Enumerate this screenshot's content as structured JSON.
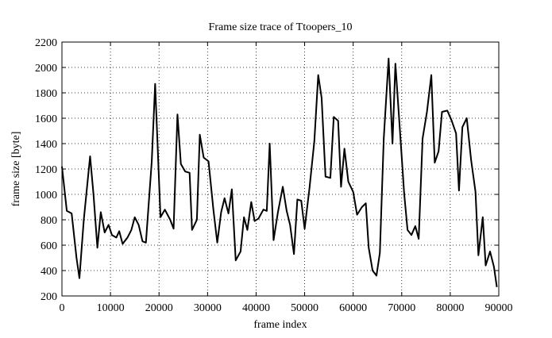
{
  "chart_data": {
    "type": "line",
    "title": "Frame size trace of Ttoopers_10",
    "x_label": "frame index",
    "y_label": "frame size [byte]",
    "x": [
      0,
      1000,
      2000,
      3000,
      3600,
      4500,
      5800,
      6500,
      7300,
      8000,
      8800,
      9600,
      10300,
      11200,
      11800,
      12500,
      13500,
      14300,
      15000,
      15800,
      16600,
      17300,
      18500,
      19200,
      20300,
      21200,
      22300,
      23000,
      23800,
      24500,
      25400,
      26300,
      26800,
      27800,
      28400,
      29200,
      30200,
      31200,
      32000,
      32800,
      33500,
      34300,
      35000,
      35800,
      36800,
      37500,
      38200,
      39000,
      39700,
      40500,
      41500,
      42200,
      42800,
      43600,
      44500,
      45500,
      46300,
      47000,
      47800,
      48500,
      49300,
      50000,
      51000,
      52000,
      52800,
      53500,
      54300,
      55300,
      56000,
      56900,
      57500,
      58200,
      59000,
      60000,
      60800,
      61800,
      62600,
      63200,
      64000,
      64800,
      65500,
      66300,
      67300,
      68100,
      68700,
      69800,
      70500,
      71200,
      72000,
      72800,
      73500,
      74300,
      75200,
      76100,
      76800,
      77600,
      78300,
      79400,
      80300,
      81200,
      81800,
      82500,
      83400,
      84300,
      85200,
      85800,
      86700,
      87300,
      88200,
      89000,
      89600
    ],
    "values": [
      1220,
      870,
      850,
      500,
      340,
      800,
      1300,
      1000,
      580,
      860,
      700,
      760,
      680,
      660,
      710,
      610,
      660,
      720,
      820,
      760,
      630,
      620,
      1260,
      1870,
      820,
      880,
      800,
      730,
      1630,
      1240,
      1180,
      1170,
      720,
      800,
      1470,
      1290,
      1260,
      880,
      620,
      860,
      970,
      850,
      1040,
      480,
      550,
      820,
      720,
      940,
      790,
      810,
      880,
      870,
      1400,
      640,
      860,
      1060,
      870,
      760,
      530,
      960,
      950,
      730,
      1050,
      1420,
      1940,
      1760,
      1140,
      1130,
      1610,
      1580,
      1060,
      1360,
      1100,
      1020,
      840,
      900,
      930,
      580,
      400,
      360,
      540,
      1440,
      2070,
      1400,
      2030,
      1410,
      1010,
      720,
      680,
      750,
      650,
      1440,
      1650,
      1940,
      1250,
      1340,
      1650,
      1660,
      1580,
      1480,
      1030,
      1530,
      1600,
      1270,
      1020,
      520,
      820,
      440,
      550,
      430,
      270
    ],
    "color": "#000000",
    "xlim": [
      0,
      90000
    ],
    "xticks": [
      0,
      10000,
      20000,
      30000,
      40000,
      50000,
      60000,
      70000,
      80000,
      90000
    ],
    "ylim": [
      200,
      2200
    ],
    "yticks": [
      200,
      400,
      600,
      800,
      1000,
      1200,
      1400,
      1600,
      1800,
      2000,
      2200
    ],
    "grid": true
  }
}
